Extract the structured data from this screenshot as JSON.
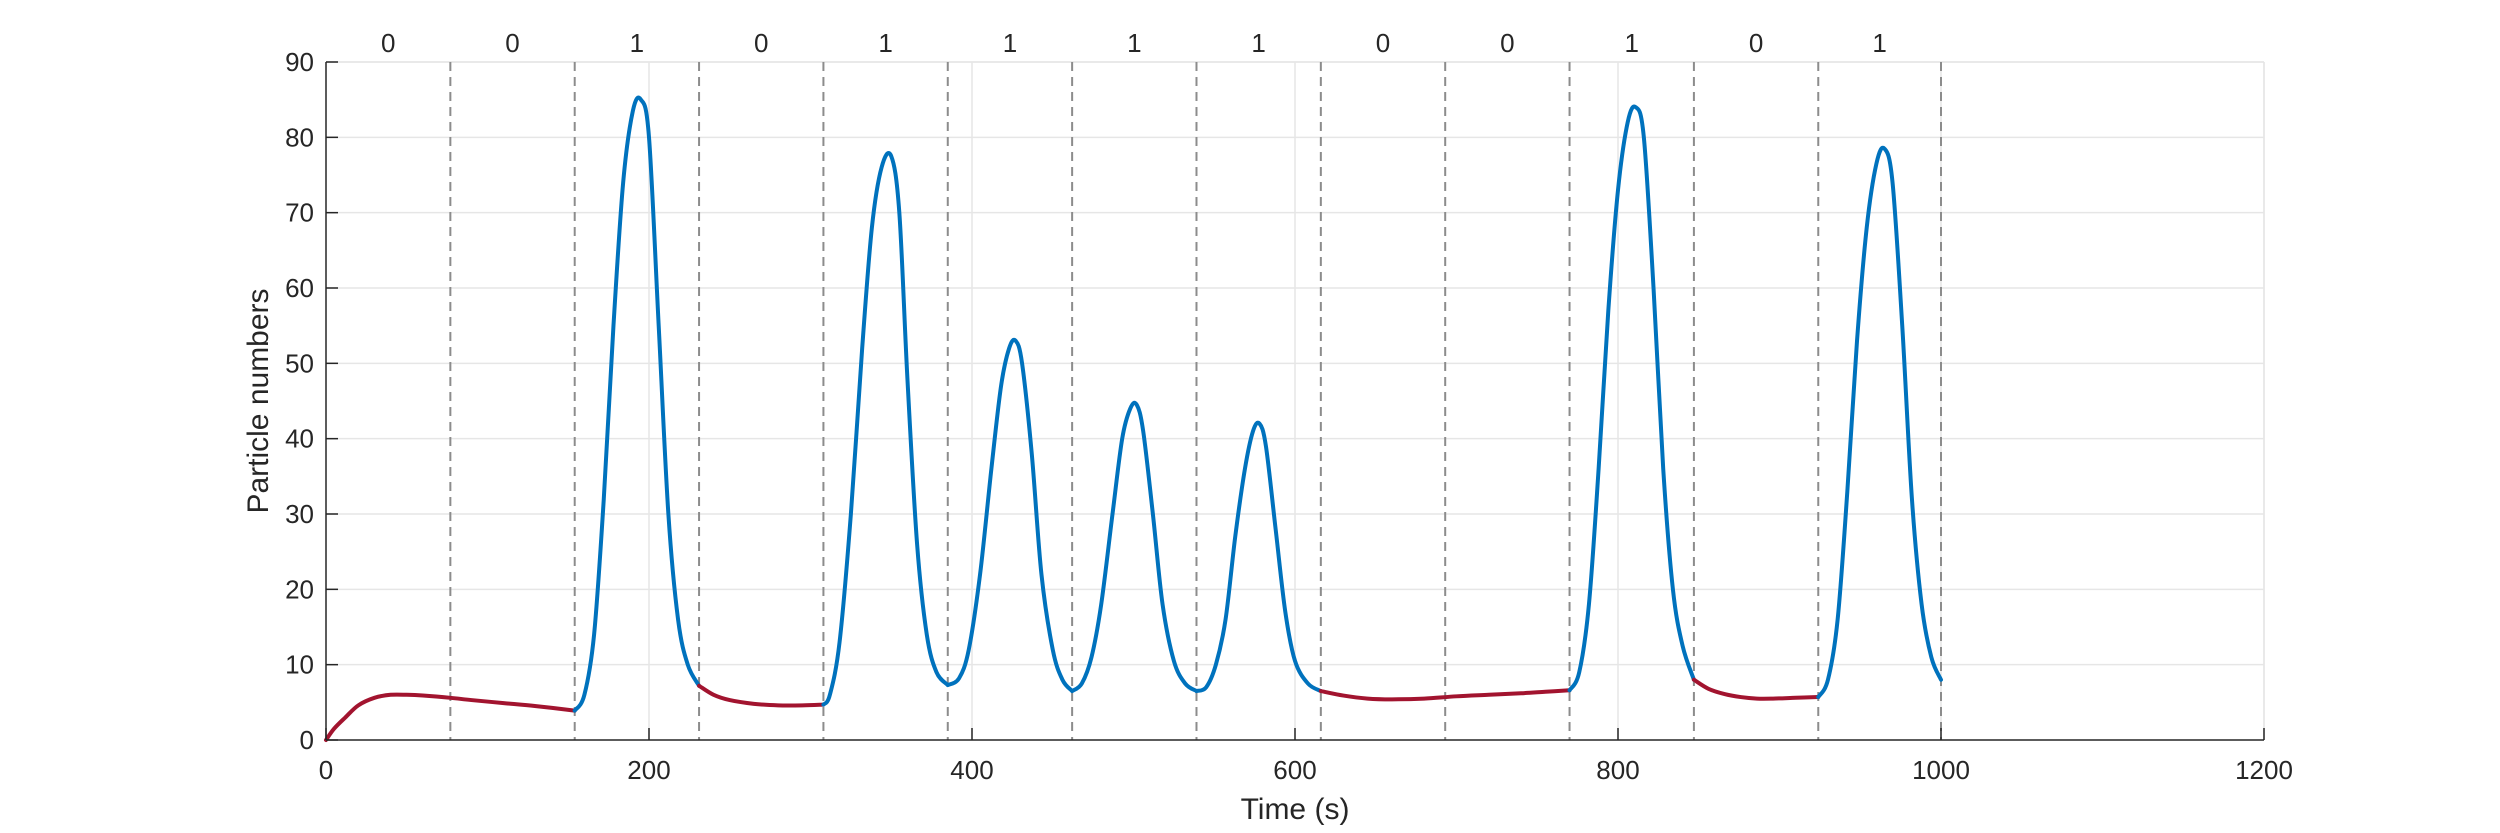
{
  "chart_data": {
    "type": "line",
    "title": "",
    "xlabel": "Time (s)",
    "ylabel": "Particle numbers",
    "xlim": [
      0,
      1200
    ],
    "ylim": [
      0,
      90
    ],
    "xticks": [
      0,
      200,
      400,
      600,
      800,
      1000,
      1200
    ],
    "yticks": [
      0,
      10,
      20,
      30,
      40,
      50,
      60,
      70,
      80,
      90
    ],
    "grid": true,
    "colors": {
      "state_0": "#A2142F",
      "state_1": "#0072BD",
      "grid": "#e6e6e6",
      "divider": "#8c8c8c",
      "axis": "#262626"
    },
    "segments": [
      {
        "start": 0,
        "end": 77,
        "label": "0"
      },
      {
        "start": 77,
        "end": 154,
        "label": "0"
      },
      {
        "start": 154,
        "end": 231,
        "label": "1"
      },
      {
        "start": 231,
        "end": 308,
        "label": "0"
      },
      {
        "start": 308,
        "end": 385,
        "label": "1"
      },
      {
        "start": 385,
        "end": 462,
        "label": "1"
      },
      {
        "start": 462,
        "end": 539,
        "label": "1"
      },
      {
        "start": 539,
        "end": 616,
        "label": "1"
      },
      {
        "start": 616,
        "end": 693,
        "label": "0"
      },
      {
        "start": 693,
        "end": 770,
        "label": "0"
      },
      {
        "start": 770,
        "end": 847,
        "label": "1"
      },
      {
        "start": 847,
        "end": 924,
        "label": "0"
      },
      {
        "start": 924,
        "end": 1000,
        "label": "1"
      }
    ],
    "series": [
      {
        "state": "0",
        "x": [
          0,
          5,
          12,
          20,
          30,
          40,
          50,
          60,
          77,
          90,
          110,
          130,
          154
        ],
        "y": [
          0,
          1.5,
          3.0,
          4.6,
          5.6,
          6.0,
          6.0,
          5.9,
          5.6,
          5.3,
          4.9,
          4.5,
          3.9
        ]
      },
      {
        "state": "1",
        "x": [
          154,
          160,
          166,
          172,
          178,
          184,
          190,
          195,
          200,
          206,
          212,
          218,
          224,
          231
        ],
        "y": [
          3.9,
          6.0,
          14.0,
          32.0,
          55.0,
          74.0,
          83.5,
          85.0,
          80.0,
          55.0,
          30.0,
          16.0,
          10.0,
          7.2
        ]
      },
      {
        "state": "0",
        "x": [
          231,
          240,
          250,
          265,
          280,
          295,
          308
        ],
        "y": [
          7.2,
          6.0,
          5.3,
          4.8,
          4.6,
          4.6,
          4.7
        ]
      },
      {
        "state": "1",
        "x": [
          308,
          312,
          318,
          325,
          332,
          338,
          344,
          350,
          355,
          360,
          366,
          372,
          378,
          385
        ],
        "y": [
          4.7,
          6.0,
          13.0,
          30.0,
          52.0,
          68.0,
          76.0,
          77.5,
          70.0,
          48.0,
          26.0,
          14.0,
          9.0,
          7.3
        ]
      },
      {
        "state": "1",
        "x": [
          385,
          392,
          398,
          405,
          412,
          418,
          423,
          427,
          431,
          437,
          443,
          450,
          456,
          462
        ],
        "y": [
          7.3,
          8.2,
          12.0,
          22.0,
          36.0,
          47.0,
          52.0,
          53.0,
          50.0,
          38.0,
          22.0,
          12.0,
          8.0,
          6.5
        ]
      },
      {
        "state": "1",
        "x": [
          462,
          468,
          474,
          480,
          487,
          493,
          498,
          502,
          506,
          512,
          518,
          525,
          532,
          539
        ],
        "y": [
          6.5,
          7.5,
          11.0,
          18.0,
          30.0,
          40.0,
          44.0,
          44.5,
          41.0,
          30.0,
          18.0,
          10.5,
          7.5,
          6.5
        ]
      },
      {
        "state": "1",
        "x": [
          539,
          545,
          551,
          557,
          563,
          569,
          574,
          578,
          582,
          588,
          594,
          600,
          608,
          616
        ],
        "y": [
          6.5,
          7.0,
          10.0,
          16.0,
          27.0,
          36.0,
          41.0,
          42.0,
          39.0,
          28.0,
          17.0,
          10.5,
          7.5,
          6.5
        ]
      },
      {
        "state": "0",
        "x": [
          616,
          630,
          645,
          660,
          680,
          700,
          720,
          740,
          755,
          770
        ],
        "y": [
          6.5,
          5.9,
          5.5,
          5.4,
          5.5,
          5.8,
          6.0,
          6.2,
          6.4,
          6.6
        ]
      },
      {
        "state": "1",
        "x": [
          770,
          776,
          782,
          788,
          794,
          800,
          806,
          811,
          816,
          822,
          828,
          834,
          840,
          847
        ],
        "y": [
          6.6,
          9.0,
          18.0,
          36.0,
          57.0,
          73.0,
          82.0,
          84.0,
          80.0,
          60.0,
          36.0,
          20.0,
          12.5,
          8.0
        ]
      },
      {
        "state": "0",
        "x": [
          847,
          856,
          866,
          876,
          886,
          896,
          910,
          924
        ],
        "y": [
          8.0,
          6.8,
          6.1,
          5.7,
          5.5,
          5.5,
          5.6,
          5.7
        ]
      },
      {
        "state": "1",
        "x": [
          924,
          930,
          936,
          942,
          948,
          954,
          960,
          965,
          970,
          976,
          982,
          988,
          994,
          1000
        ],
        "y": [
          5.7,
          8.0,
          16.0,
          33.0,
          53.0,
          68.0,
          76.5,
          78.5,
          74.0,
          55.0,
          32.0,
          18.0,
          11.0,
          8.0
        ]
      }
    ]
  }
}
